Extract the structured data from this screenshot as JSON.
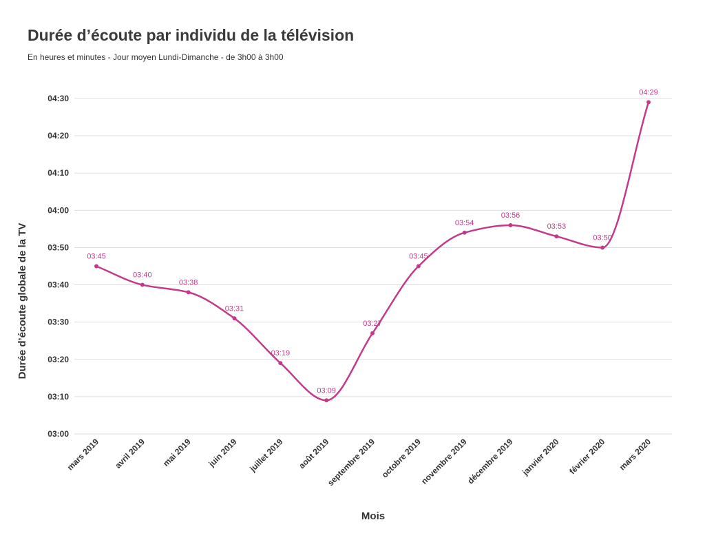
{
  "chart_data": {
    "type": "line",
    "title": "Durée d’écoute par individu de la télévision",
    "subtitle": "En heures et minutes - Jour moyen Lundi-Dimanche - de 3h00 à 3h00",
    "xlabel": "Mois",
    "ylabel": "Durée d’écoute globale de la TV",
    "categories": [
      "mars 2019",
      "avril 2019",
      "mai 2019",
      "juin 2019",
      "juillet 2019",
      "août 2019",
      "septembre 2019",
      "octobre 2019",
      "novembre 2019",
      "décembre 2019",
      "janvier 2020",
      "février 2020",
      "mars 2020"
    ],
    "series": [
      {
        "values": [
          "03:45",
          "03:40",
          "03:38",
          "03:31",
          "03:19",
          "03:09",
          "03:27",
          "03:45",
          "03:54",
          "03:56",
          "03:53",
          "03:50",
          "04:29"
        ],
        "color": "#c23a8a"
      }
    ],
    "yticks": [
      "03:00",
      "03:10",
      "03:20",
      "03:30",
      "03:40",
      "03:50",
      "04:00",
      "04:10",
      "04:20",
      "04:30"
    ],
    "ylim": [
      "03:00",
      "04:30"
    ],
    "grid": true,
    "legend": "none"
  }
}
